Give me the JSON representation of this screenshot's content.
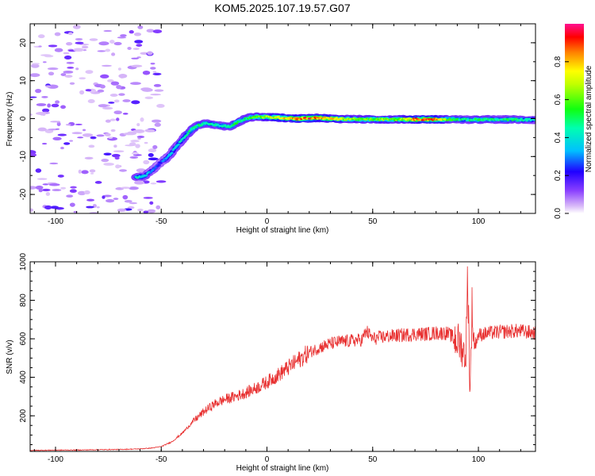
{
  "title": "KOM5.2025.107.19.57.G07",
  "chart_data": [
    {
      "type": "heatmap",
      "xlabel": "Height of straight line (km)",
      "ylabel": "Frequency (Hz)",
      "xlim": [
        -112,
        127
      ],
      "ylim": [
        -25,
        25
      ],
      "xticks": [
        -100,
        -50,
        0,
        50,
        100
      ],
      "yticks": [
        -20,
        -10,
        0,
        10,
        20
      ],
      "colorbar": {
        "label": "Normalized spectral amplitude",
        "range": [
          0,
          1
        ],
        "ticks": [
          0.0,
          0.2,
          0.4,
          0.6,
          0.8
        ],
        "tick_labels": [
          "0.0",
          "0.2",
          "0.4",
          "0.6",
          "0.8"
        ]
      },
      "trace": {
        "x": [
          -62,
          -58,
          -54,
          -50,
          -47,
          -44,
          -41,
          -38,
          -35,
          -32,
          -29,
          -26,
          -23,
          -20,
          -17,
          -14,
          -11,
          -8,
          -5,
          -2,
          0,
          5,
          10,
          15,
          20,
          25,
          30,
          35,
          40,
          45,
          50,
          55,
          60,
          65,
          70,
          75,
          80,
          85,
          90,
          95,
          100,
          105,
          110,
          115,
          120,
          127
        ],
        "y": [
          -15.5,
          -15.2,
          -13.5,
          -11.5,
          -10.2,
          -8.2,
          -6.2,
          -4.2,
          -2.6,
          -1.7,
          -1.3,
          -1.5,
          -1.8,
          -2.0,
          -2.0,
          -1.0,
          -0.2,
          0.3,
          0.5,
          0.4,
          0.4,
          0.3,
          0.1,
          0.0,
          0.1,
          0.2,
          0.0,
          -0.1,
          -0.1,
          -0.2,
          -0.2,
          -0.2,
          -0.2,
          -0.2,
          -0.2,
          -0.2,
          -0.2,
          -0.2,
          -0.2,
          -0.3,
          -0.3,
          -0.2,
          -0.3,
          -0.2,
          -0.3,
          -0.3
        ],
        "amplitude": [
          0.45,
          0.4,
          0.3,
          0.25,
          0.35,
          0.4,
          0.42,
          0.45,
          0.5,
          0.5,
          0.48,
          0.45,
          0.42,
          0.45,
          0.5,
          0.55,
          0.5,
          0.55,
          0.6,
          0.65,
          0.7,
          0.75,
          0.8,
          0.85,
          0.9,
          0.85,
          0.8,
          0.7,
          0.65,
          0.6,
          0.6,
          0.65,
          0.6,
          0.7,
          0.85,
          0.9,
          0.85,
          0.6,
          0.5,
          0.45,
          0.55,
          0.5,
          0.45,
          0.5,
          0.45,
          0.4
        ]
      },
      "noise_region_x": [
        -112,
        -50
      ]
    },
    {
      "type": "line",
      "xlabel": "Height of straight line (km)",
      "ylabel": "SNR (v/v)",
      "xlim": [
        -112,
        127
      ],
      "ylim": [
        15,
        1000
      ],
      "xticks": [
        -100,
        -50,
        0,
        50,
        100
      ],
      "yticks": [
        200,
        400,
        600,
        800,
        1000
      ],
      "color": "#e83030",
      "series": [
        {
          "x": [
            -112,
            -100,
            -90,
            -80,
            -70,
            -60,
            -55,
            -50,
            -45,
            -40,
            -35,
            -30,
            -25,
            -20,
            -15,
            -10,
            -5,
            0,
            5,
            10,
            15,
            20,
            25,
            30,
            35,
            40,
            45,
            47,
            50,
            55,
            60,
            65,
            70,
            75,
            80,
            85,
            88,
            90,
            92,
            94,
            95,
            96,
            97,
            98,
            100,
            105,
            110,
            115,
            120,
            127
          ],
          "y": [
            20,
            22,
            22,
            24,
            25,
            28,
            32,
            40,
            65,
            110,
            170,
            220,
            260,
            285,
            300,
            320,
            345,
            375,
            410,
            450,
            490,
            530,
            555,
            575,
            585,
            590,
            595,
            640,
            600,
            610,
            615,
            620,
            625,
            625,
            630,
            630,
            610,
            590,
            560,
            500,
            940,
            300,
            760,
            560,
            620,
            630,
            635,
            640,
            640,
            630
          ]
        }
      ]
    }
  ]
}
